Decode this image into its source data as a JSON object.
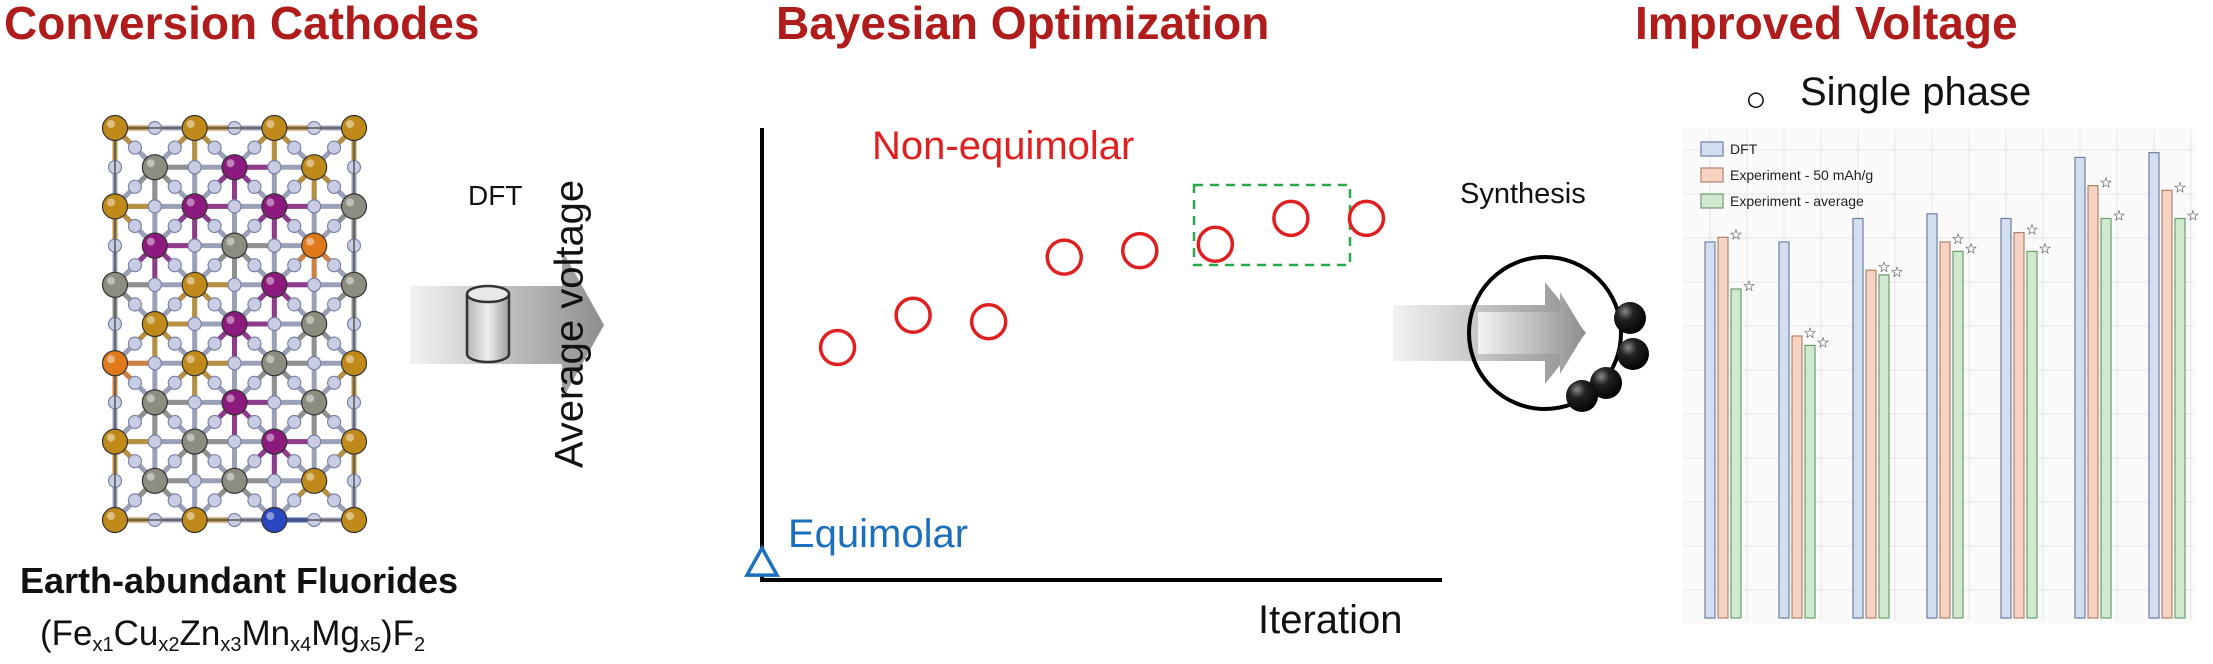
{
  "panels": {
    "left": {
      "title": "Conversion Cathodes",
      "subtitle": "Earth-abundant Fluorides",
      "formula": {
        "elements": [
          {
            "el": "Fe",
            "sub": "x1"
          },
          {
            "el": "Cu",
            "sub": "x2"
          },
          {
            "el": "Zn",
            "sub": "x3"
          },
          {
            "el": "Mn",
            "sub": "x4"
          },
          {
            "el": "Mg",
            "sub": "x5"
          }
        ],
        "open": "(",
        "close": ")F",
        "close_sub": "2"
      }
    },
    "arrow1": {
      "label": "DFT"
    },
    "middle": {
      "title": "Bayesian Optimization",
      "ylabel": "Average voltage",
      "xlabel": "Iteration",
      "label_nonequimolar": "Non-equimolar",
      "label_equimolar": "Equimolar",
      "colors": {
        "circles": "#e02020",
        "equimolar": "#1a6fbf",
        "best_box": "#2aa84a"
      }
    },
    "arrow2": {
      "label": "Synthesis"
    },
    "right": {
      "title": "Improved Voltage",
      "legend_symbol": "○",
      "legend_label": "Single phase",
      "inset_legend": [
        "DFT",
        "Experiment - 50 mAh/g",
        "Experiment - average"
      ],
      "colors": {
        "dft": "#d3dff0",
        "exp50": "#f6d3c3",
        "expavg": "#cfe9cf"
      }
    }
  },
  "chart_data": {
    "type": "scatter",
    "title": "",
    "xlabel": "Iteration",
    "ylabel": "Average voltage",
    "series": [
      {
        "name": "Equimolar",
        "marker": "triangle",
        "x": [
          0
        ],
        "y": [
          0.2
        ]
      },
      {
        "name": "Non-equimolar",
        "marker": "circle",
        "x": [
          1,
          2,
          3,
          4,
          5,
          6,
          7,
          8
        ],
        "y": [
          3.6,
          4.1,
          4.0,
          5.0,
          5.1,
          5.2,
          5.6,
          5.6
        ]
      }
    ],
    "highlighted": [
      7,
      8
    ],
    "grid": false
  }
}
